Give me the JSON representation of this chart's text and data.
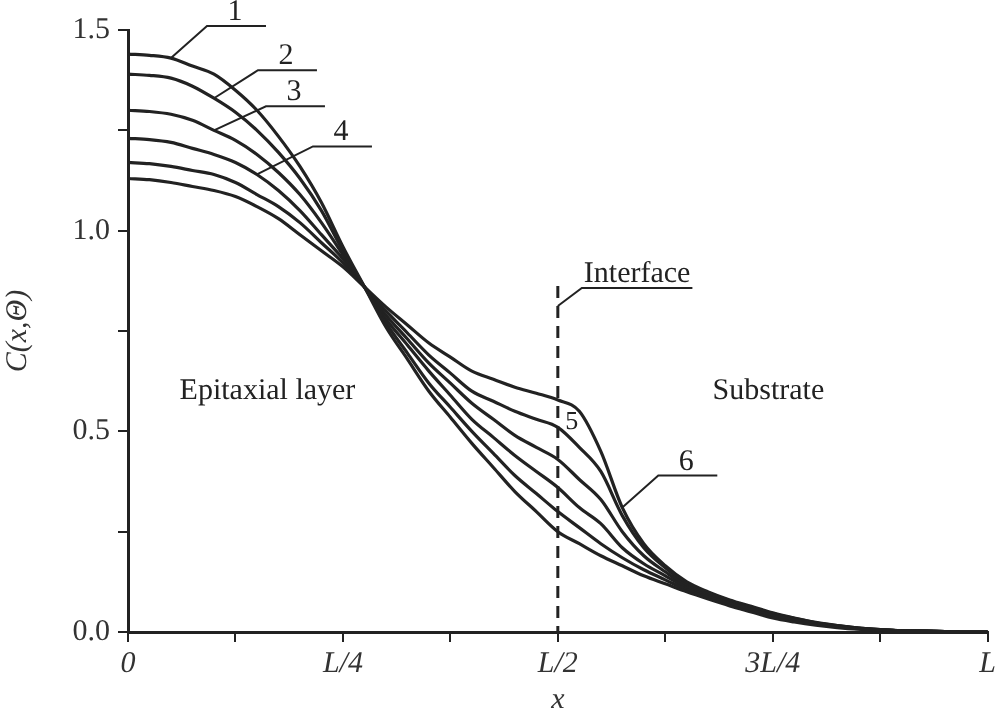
{
  "chart_data": {
    "type": "line",
    "xlabel": "x",
    "ylabel": "C(x,Θ)",
    "categories": [
      "0",
      null,
      null,
      null,
      null,
      null,
      null,
      null,
      null,
      null,
      "L/4",
      null,
      null,
      null,
      null,
      null,
      null,
      null,
      null,
      null,
      "L/2",
      null,
      null,
      null,
      null,
      null,
      null,
      null,
      null,
      null,
      "3L/4",
      null,
      null,
      null,
      null,
      null,
      null,
      null,
      null,
      null,
      "L"
    ],
    "series": [
      {
        "name": "1",
        "color": "#222222",
        "values": [
          1.44,
          1.437,
          1.43,
          1.41,
          1.39,
          1.35,
          1.3,
          1.235,
          1.16,
          1.07,
          0.96,
          0.86,
          0.76,
          0.68,
          0.6,
          0.535,
          0.47,
          0.41,
          0.35,
          0.3,
          0.25,
          0.22,
          0.19,
          0.165,
          0.14,
          0.12,
          0.1,
          0.082,
          0.065,
          0.05,
          0.035,
          0.025,
          0.017,
          0.011,
          0.007,
          0.005,
          0.003,
          0.002,
          0.001,
          0,
          0
        ]
      },
      {
        "name": "2",
        "color": "#222222",
        "values": [
          1.39,
          1.387,
          1.38,
          1.36,
          1.33,
          1.295,
          1.25,
          1.195,
          1.13,
          1.05,
          0.95,
          0.86,
          0.77,
          0.695,
          0.62,
          0.56,
          0.5,
          0.445,
          0.39,
          0.345,
          0.3,
          0.26,
          0.22,
          0.185,
          0.155,
          0.13,
          0.105,
          0.087,
          0.07,
          0.055,
          0.04,
          0.029,
          0.02,
          0.013,
          0.008,
          0.005,
          0.003,
          0.002,
          0.001,
          0,
          0
        ]
      },
      {
        "name": "3",
        "color": "#222222",
        "values": [
          1.3,
          1.297,
          1.29,
          1.275,
          1.25,
          1.225,
          1.19,
          1.145,
          1.09,
          1.02,
          0.94,
          0.86,
          0.78,
          0.715,
          0.65,
          0.59,
          0.53,
          0.485,
          0.44,
          0.4,
          0.36,
          0.31,
          0.27,
          0.21,
          0.17,
          0.14,
          0.11,
          0.09,
          0.072,
          0.057,
          0.042,
          0.031,
          0.021,
          0.014,
          0.009,
          0.006,
          0.003,
          0.002,
          0.001,
          0,
          0
        ]
      },
      {
        "name": "4",
        "color": "#222222",
        "values": [
          1.23,
          1.227,
          1.22,
          1.205,
          1.19,
          1.17,
          1.14,
          1.1,
          1.05,
          0.99,
          0.93,
          0.86,
          0.79,
          0.73,
          0.67,
          0.62,
          0.57,
          0.53,
          0.49,
          0.46,
          0.43,
          0.38,
          0.33,
          0.25,
          0.19,
          0.15,
          0.115,
          0.095,
          0.075,
          0.06,
          0.044,
          0.032,
          0.022,
          0.015,
          0.009,
          0.006,
          0.003,
          0.002,
          0.001,
          0,
          0
        ]
      },
      {
        "name": "5",
        "color": "#222222",
        "values": [
          1.17,
          1.167,
          1.16,
          1.15,
          1.14,
          1.12,
          1.09,
          1.06,
          1.02,
          0.97,
          0.92,
          0.86,
          0.8,
          0.745,
          0.69,
          0.645,
          0.6,
          0.575,
          0.55,
          0.53,
          0.51,
          0.46,
          0.4,
          0.29,
          0.21,
          0.16,
          0.12,
          0.098,
          0.078,
          0.062,
          0.046,
          0.034,
          0.023,
          0.016,
          0.01,
          0.006,
          0.003,
          0.002,
          0.001,
          0,
          0
        ]
      },
      {
        "name": "6",
        "color": "#222222",
        "values": [
          1.13,
          1.127,
          1.12,
          1.11,
          1.1,
          1.085,
          1.06,
          1.03,
          0.99,
          0.95,
          0.91,
          0.86,
          0.81,
          0.765,
          0.72,
          0.685,
          0.65,
          0.63,
          0.61,
          0.595,
          0.578,
          0.55,
          0.45,
          0.31,
          0.22,
          0.165,
          0.125,
          0.1,
          0.08,
          0.064,
          0.048,
          0.035,
          0.024,
          0.016,
          0.01,
          0.006,
          0.003,
          0.002,
          0.001,
          0,
          0
        ]
      }
    ],
    "ylim": [
      0,
      1.5
    ],
    "yticks": [
      {
        "value": 0,
        "label": "0.0"
      },
      {
        "value": 0.25,
        "label": null
      },
      {
        "value": 0.5,
        "label": "0.5"
      },
      {
        "value": 0.75,
        "label": null
      },
      {
        "value": 1,
        "label": "1.0"
      },
      {
        "value": 1.25,
        "label": null
      },
      {
        "value": 1.5,
        "label": "1.5"
      }
    ],
    "ref_lines": [
      {
        "axis": "x",
        "value": "L/2",
        "label": "Interface",
        "color": "#222222",
        "line_style": "dashed"
      }
    ],
    "annotations": [
      "Epitaxial layer",
      "Substrate"
    ],
    "grid": false,
    "legend": false,
    "marker": "none",
    "line_style": "solid"
  }
}
